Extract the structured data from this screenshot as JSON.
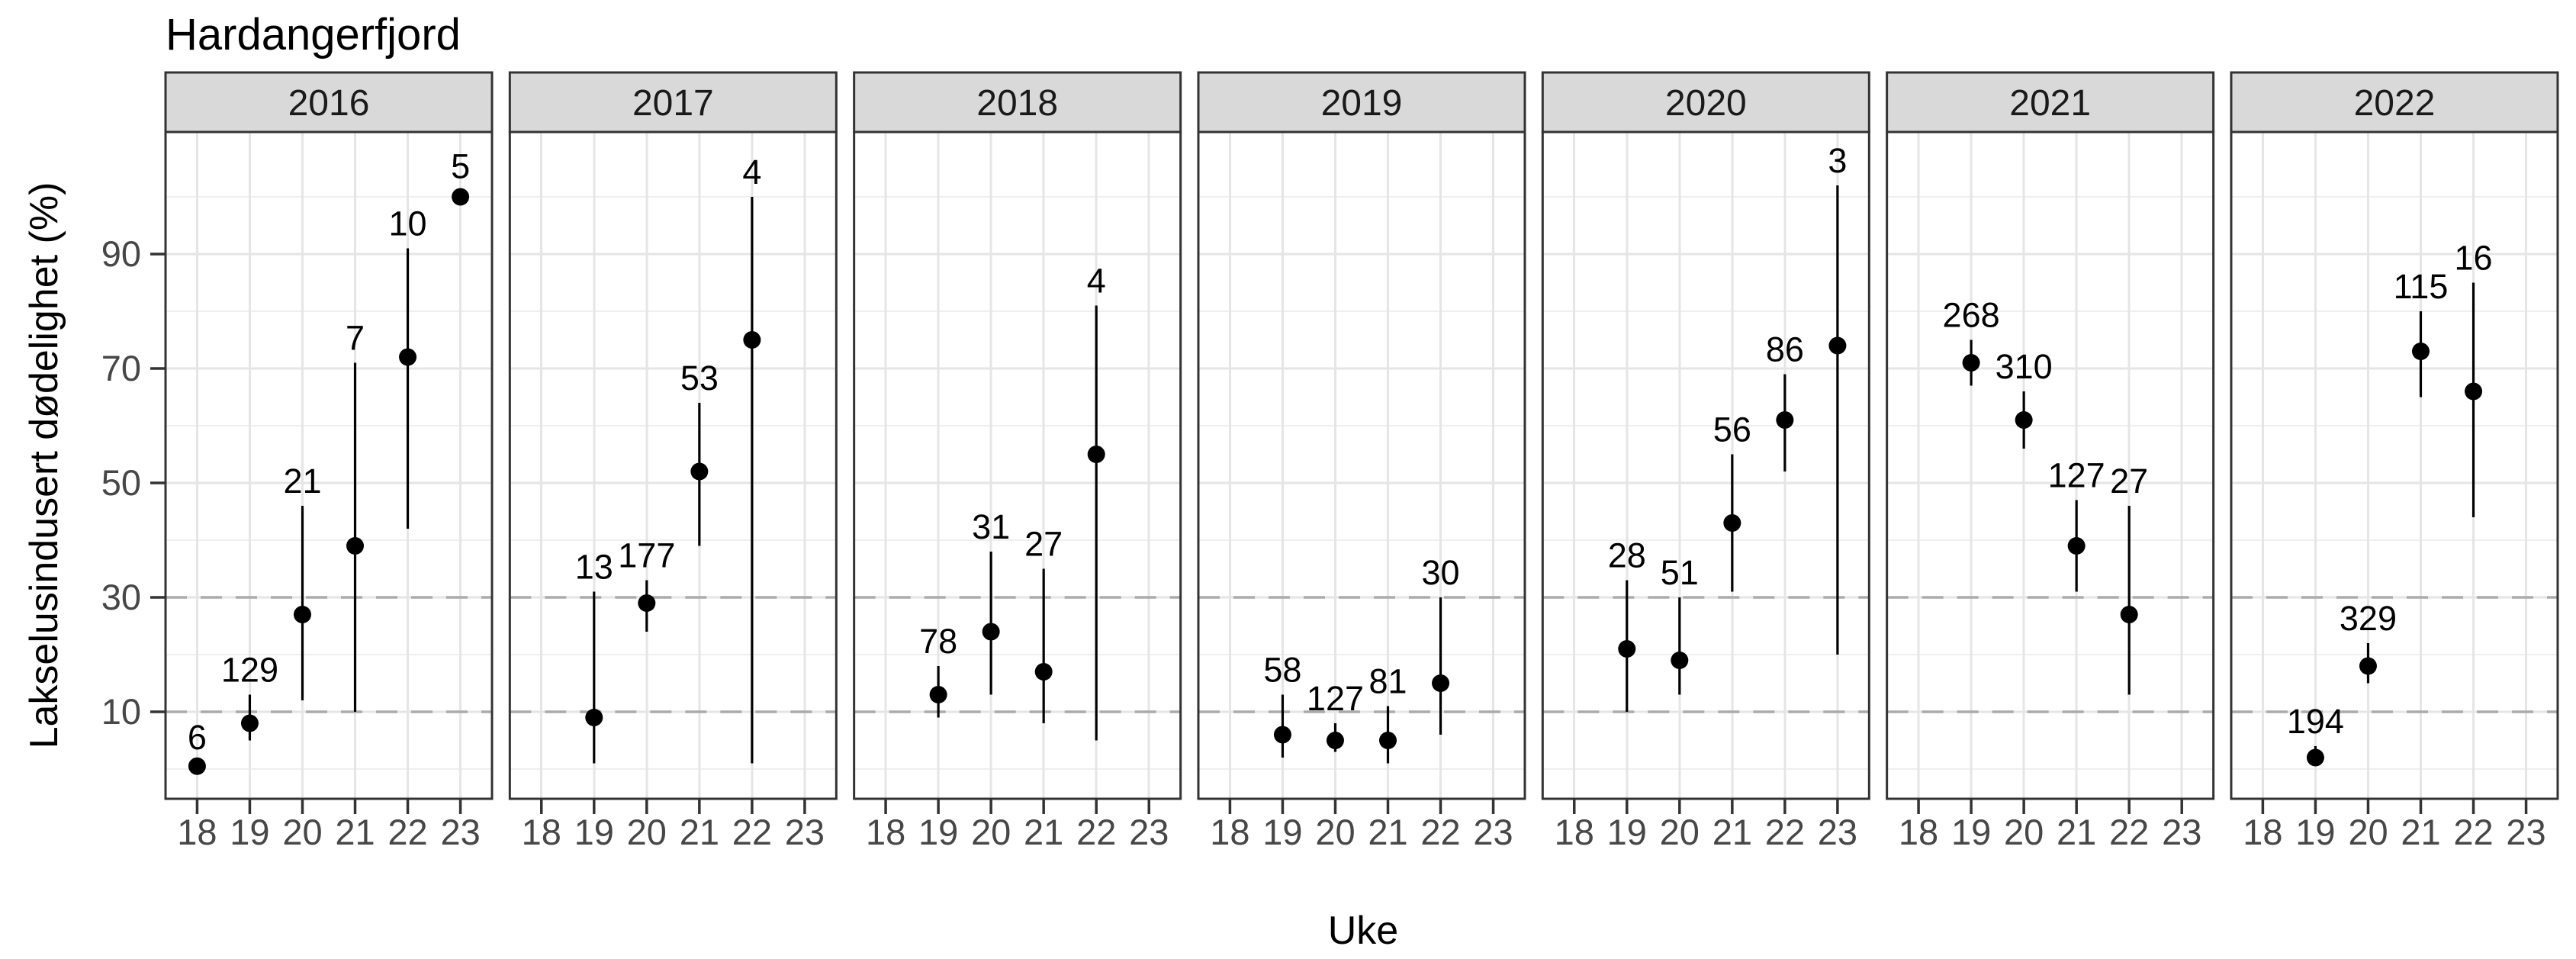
{
  "title": "Hardangerfjord",
  "axes": {
    "x_title": "Uke",
    "y_title": "Lakselusindusert dødelighet (%)",
    "x_tick_labels": [
      "18",
      "19",
      "20",
      "21",
      "22",
      "23"
    ],
    "y_tick_labels": [
      "10",
      "30",
      "50",
      "70",
      "90"
    ]
  },
  "colors": {
    "strip_background": "#d9d9d9",
    "panel_border": "#333333",
    "grid_major": "#e5e5e5",
    "grid_minor": "#efefef",
    "reference_line": "#ababab",
    "tick_text": "#474747",
    "strip_text": "#1a1a1a",
    "point": "#000000"
  },
  "chart_data": {
    "type": "scatter",
    "title": "Hardangerfjord",
    "xlabel": "Uke",
    "ylabel": "Lakselusindusert dødelighet (%)",
    "x_categories": [
      18,
      19,
      20,
      21,
      22,
      23
    ],
    "y_ticks": [
      10,
      30,
      50,
      70,
      90
    ],
    "ylim": [
      -5.2,
      111.3
    ],
    "grid": "on",
    "reference_lines_dashed": [
      10,
      30
    ],
    "facets": [
      {
        "year": "2016",
        "points": [
          {
            "week": 18,
            "value": 0.5,
            "ci_low": 0.3,
            "ci_high": 1.2,
            "count": "6"
          },
          {
            "week": 19,
            "value": 8,
            "ci_low": 5,
            "ci_high": 13,
            "count": "129"
          },
          {
            "week": 20,
            "value": 27,
            "ci_low": 12,
            "ci_high": 46,
            "count": "21"
          },
          {
            "week": 21,
            "value": 39,
            "ci_low": 10,
            "ci_high": 71,
            "count": "7"
          },
          {
            "week": 22,
            "value": 72,
            "ci_low": 42,
            "ci_high": 91,
            "count": "10"
          },
          {
            "week": 23,
            "value": 100,
            "ci_low": 99,
            "ci_high": 101,
            "count": "5"
          }
        ]
      },
      {
        "year": "2017",
        "points": [
          {
            "week": 19,
            "value": 9,
            "ci_low": 1,
            "ci_high": 31,
            "count": "13"
          },
          {
            "week": 20,
            "value": 29,
            "ci_low": 24,
            "ci_high": 33,
            "count": "177"
          },
          {
            "week": 21,
            "value": 52,
            "ci_low": 39,
            "ci_high": 64,
            "count": "53"
          },
          {
            "week": 22,
            "value": 75,
            "ci_low": 1,
            "ci_high": 100,
            "count": "4"
          }
        ]
      },
      {
        "year": "2018",
        "points": [
          {
            "week": 19,
            "value": 13,
            "ci_low": 9,
            "ci_high": 18,
            "count": "78"
          },
          {
            "week": 20,
            "value": 24,
            "ci_low": 13,
            "ci_high": 38,
            "count": "31"
          },
          {
            "week": 21,
            "value": 17,
            "ci_low": 8,
            "ci_high": 35,
            "count": "27"
          },
          {
            "week": 22,
            "value": 55,
            "ci_low": 5,
            "ci_high": 81,
            "count": "4"
          }
        ]
      },
      {
        "year": "2019",
        "points": [
          {
            "week": 19,
            "value": 6,
            "ci_low": 2,
            "ci_high": 13,
            "count": "58"
          },
          {
            "week": 20,
            "value": 5,
            "ci_low": 3,
            "ci_high": 8,
            "count": "127"
          },
          {
            "week": 21,
            "value": 5,
            "ci_low": 1,
            "ci_high": 11,
            "count": "81"
          },
          {
            "week": 22,
            "value": 15,
            "ci_low": 6,
            "ci_high": 30,
            "count": "30"
          }
        ]
      },
      {
        "year": "2020",
        "points": [
          {
            "week": 19,
            "value": 21,
            "ci_low": 10,
            "ci_high": 33,
            "count": "28"
          },
          {
            "week": 20,
            "value": 19,
            "ci_low": 13,
            "ci_high": 30,
            "count": "51"
          },
          {
            "week": 21,
            "value": 43,
            "ci_low": 31,
            "ci_high": 55,
            "count": "56"
          },
          {
            "week": 22,
            "value": 61,
            "ci_low": 52,
            "ci_high": 69,
            "count": "86"
          },
          {
            "week": 23,
            "value": 74,
            "ci_low": 20,
            "ci_high": 102,
            "count": "3"
          }
        ]
      },
      {
        "year": "2021",
        "points": [
          {
            "week": 19,
            "value": 71,
            "ci_low": 67,
            "ci_high": 75,
            "count": "268"
          },
          {
            "week": 20,
            "value": 61,
            "ci_low": 56,
            "ci_high": 66,
            "count": "310"
          },
          {
            "week": 21,
            "value": 39,
            "ci_low": 31,
            "ci_high": 47,
            "count": "127"
          },
          {
            "week": 22,
            "value": 27,
            "ci_low": 13,
            "ci_high": 46,
            "count": "27"
          }
        ]
      },
      {
        "year": "2022",
        "points": [
          {
            "week": 19,
            "value": 2,
            "ci_low": 1,
            "ci_high": 4,
            "count": "194"
          },
          {
            "week": 20,
            "value": 18,
            "ci_low": 15,
            "ci_high": 22,
            "count": "329"
          },
          {
            "week": 21,
            "value": 73,
            "ci_low": 65,
            "ci_high": 80,
            "count": "115"
          },
          {
            "week": 22,
            "value": 66,
            "ci_low": 44,
            "ci_high": 85,
            "count": "16"
          }
        ]
      }
    ]
  }
}
